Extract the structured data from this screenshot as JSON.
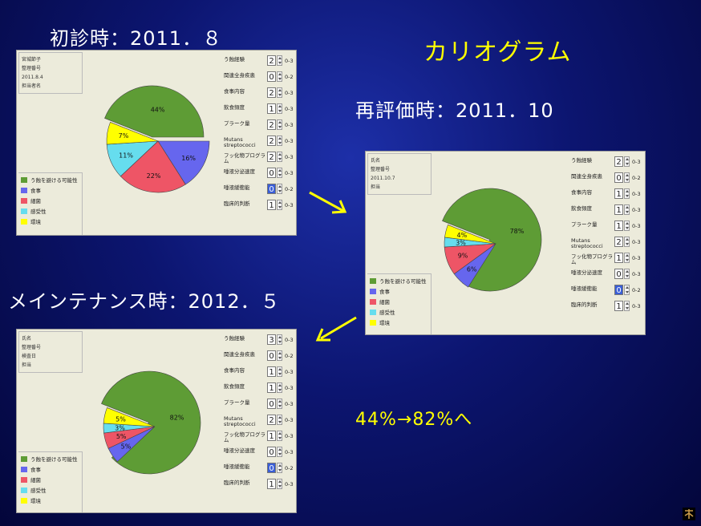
{
  "labels": {
    "first": "初診時：2011．８",
    "karyo": "カリオグラム",
    "reeval": "再評価時：2011．10",
    "maint": "メインテナンス時：2012．５",
    "change": "44%→82%へ"
  },
  "colors": {
    "green": "#5e9c35",
    "blue": "#6666ee",
    "red": "#ee5566",
    "cyan": "#66ddee",
    "yellow": "#ffff00"
  },
  "legend": [
    "う蝕を避ける可能性",
    "食事",
    "細菌",
    "感受性",
    "環境"
  ],
  "criteria": [
    "う蝕経験",
    "関連全身疾患",
    "食事内容",
    "飲食頻度",
    "プラーク量",
    "Mutans streptococci",
    "フッ化物プログラム",
    "唾液分泌速度",
    "唾液緩衝能",
    "臨床的判断"
  ],
  "ranges": [
    "0-3",
    "0-2",
    "0-3",
    "0-3",
    "0-3",
    "0-3",
    "0-3",
    "0-3",
    "0-2",
    "0-3"
  ],
  "panels": [
    {
      "info": [
        "宮城節子",
        "整理番号",
        "2011.8.4",
        "担当者名"
      ],
      "values": [
        "2",
        "0",
        "2",
        "1",
        "2",
        "2",
        "2",
        "0",
        "0",
        "1"
      ],
      "selected": 8
    },
    {
      "info": [
        "氏名",
        "整理番号",
        "2011.10.7",
        "担当"
      ],
      "values": [
        "2",
        "0",
        "1",
        "1",
        "1",
        "2",
        "1",
        "0",
        "0",
        "1"
      ],
      "selected": 8
    },
    {
      "info": [
        "氏名",
        "整理番号",
        "検査日",
        "担当"
      ],
      "values": [
        "3",
        "0",
        "1",
        "1",
        "0",
        "2",
        "1",
        "0",
        "0",
        "1"
      ],
      "selected": 8
    }
  ],
  "chart_data": [
    {
      "type": "pie",
      "title": "初診時：2011．８",
      "categories": [
        "う蝕を避ける可能性",
        "食事",
        "細菌",
        "感受性",
        "環境"
      ],
      "values": [
        44,
        16,
        22,
        11,
        7
      ]
    },
    {
      "type": "pie",
      "title": "再評価時：2011．10",
      "categories": [
        "う蝕を避ける可能性",
        "食事",
        "細菌",
        "感受性",
        "環境"
      ],
      "values": [
        78,
        6,
        9,
        3,
        4
      ]
    },
    {
      "type": "pie",
      "title": "メインテナンス時：2012．５",
      "categories": [
        "う蝕を避ける可能性",
        "食事",
        "細菌",
        "感受性",
        "環境"
      ],
      "values": [
        82,
        5,
        5,
        3,
        5
      ]
    }
  ]
}
